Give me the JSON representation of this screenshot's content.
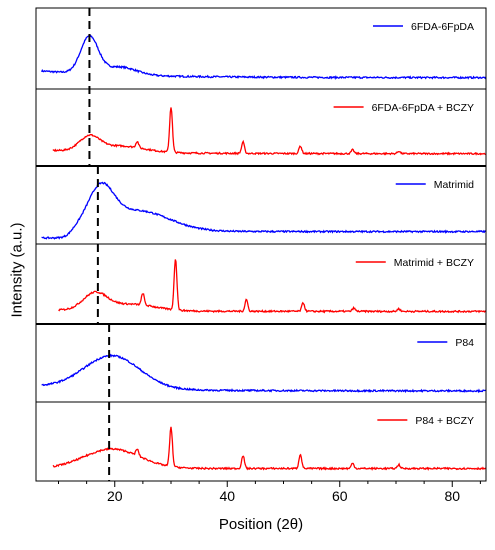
{
  "chart_data": {
    "type": "line",
    "xlabel": "Position (2θ)",
    "ylabel": "Intensity (a.u.)",
    "xlim": [
      6,
      86
    ],
    "x_ticks": [
      "20",
      "40",
      "60",
      "80"
    ],
    "reference_lines_2theta": [
      15.5,
      17.0,
      19.0
    ],
    "series": [
      {
        "name": "6FDA-6FpDA",
        "color": "#0000ff",
        "x_start": 7,
        "x_end": 86,
        "base": 0.18,
        "tail": 0.08,
        "humps": [
          [
            15.5,
            0.55,
            2.2
          ],
          [
            21,
            0.12,
            4
          ]
        ],
        "peaks": []
      },
      {
        "name": "6FDA-6FpDA + BCZY",
        "color": "#ff0000",
        "x_start": 9,
        "x_end": 86,
        "base": 0.15,
        "tail": 0.1,
        "humps": [
          [
            15.5,
            0.22,
            2.5
          ],
          [
            21,
            0.1,
            6
          ]
        ],
        "peaks": [
          [
            24,
            0.1
          ],
          [
            30,
            0.72
          ],
          [
            42.8,
            0.18
          ],
          [
            53,
            0.12
          ],
          [
            62.3,
            0.06
          ],
          [
            70.5,
            0.04
          ]
        ]
      },
      {
        "name": "Matrimid",
        "color": "#0000ff",
        "x_start": 7,
        "x_end": 86,
        "base": 0.12,
        "tail": 0.1,
        "humps": [
          [
            17.5,
            0.58,
            3.2
          ],
          [
            24,
            0.32,
            8
          ]
        ],
        "peaks": [],
        "step": [
          12,
          2
        ]
      },
      {
        "name": "Matrimid + BCZY",
        "color": "#ff0000",
        "x_start": 10,
        "x_end": 86,
        "base": 0.12,
        "tail": 0.1,
        "humps": [
          [
            16.5,
            0.25,
            3
          ],
          [
            23,
            0.1,
            6
          ]
        ],
        "peaks": [
          [
            25,
            0.18
          ],
          [
            30.8,
            0.78
          ],
          [
            43.4,
            0.18
          ],
          [
            53.5,
            0.13
          ],
          [
            62.5,
            0.05
          ],
          [
            70.5,
            0.04
          ]
        ]
      },
      {
        "name": "P84",
        "color": "#0000ff",
        "x_start": 7,
        "x_end": 86,
        "base": 0.15,
        "tail": 0.08,
        "humps": [
          [
            19.5,
            0.52,
            7
          ]
        ],
        "peaks": []
      },
      {
        "name": "P84 + BCZY",
        "color": "#ff0000",
        "x_start": 9,
        "x_end": 86,
        "base": 0.1,
        "tail": 0.1,
        "humps": [
          [
            19.5,
            0.3,
            7
          ]
        ],
        "peaks": [
          [
            24,
            0.1
          ],
          [
            30,
            0.6
          ],
          [
            42.8,
            0.2
          ],
          [
            53,
            0.22
          ],
          [
            62.3,
            0.08
          ],
          [
            70.5,
            0.06
          ]
        ]
      }
    ]
  }
}
